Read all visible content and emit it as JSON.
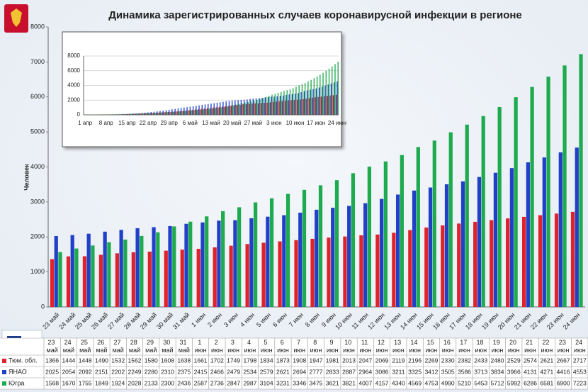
{
  "chart_data": [
    {
      "type": "bar",
      "title": "Динамика зарегистрированных случаев коронавирусной инфекции в регионе",
      "y_label": "Человек",
      "categories": [
        "23 май",
        "24 май",
        "25 май",
        "26 май",
        "27 май",
        "28 май",
        "29 май",
        "30 май",
        "31 май",
        "1 июн",
        "2 июн",
        "3 июн",
        "4 июн",
        "5 июн",
        "6 июн",
        "7 июн",
        "8 июн",
        "9 июн",
        "10 июн",
        "11 июн",
        "12 июн",
        "13 июн",
        "14 июн",
        "15 июн",
        "16 июн",
        "17 июн",
        "18 июн",
        "19 июн",
        "20 июн",
        "21 июн",
        "22 июн",
        "23 июн",
        "24 июн"
      ],
      "series": [
        {
          "name": "Тюм. обл.",
          "color": "#e0232b",
          "values": [
            1366,
            1444,
            1448,
            1490,
            1532,
            1562,
            1580,
            1608,
            1638,
            1661,
            1702,
            1749,
            1798,
            1834,
            1873,
            1908,
            1947,
            1981,
            2013,
            2047,
            2069,
            2119,
            2196,
            2269,
            2330,
            2382,
            2433,
            2480,
            2529,
            2574,
            2621,
            2667,
            2717
          ]
        },
        {
          "name": "ЯНАО",
          "color": "#2140c8",
          "values": [
            2025,
            2054,
            2092,
            2151,
            2202,
            2249,
            2280,
            2310,
            2375,
            2415,
            2466,
            2479,
            2534,
            2579,
            2621,
            2694,
            2777,
            2833,
            2887,
            2964,
            3086,
            3211,
            3325,
            3412,
            3505,
            3586,
            3713,
            3834,
            3966,
            4131,
            4271,
            4416,
            4553
          ]
        },
        {
          "name": "Югра",
          "color": "#1eaa4e",
          "values": [
            1568,
            1670,
            1755,
            1849,
            1924,
            2028,
            2133,
            2300,
            2436,
            2587,
            2736,
            2847,
            2987,
            3104,
            3231,
            3346,
            3475,
            3621,
            3821,
            4007,
            4157,
            4340,
            4569,
            4753,
            4990,
            5210,
            5453,
            5712,
            5992,
            6286,
            6581,
            6900,
            7223
          ]
        }
      ],
      "ylim": [
        0,
        8000
      ],
      "yticks": [
        0,
        1000,
        2000,
        3000,
        4000,
        5000,
        6000,
        7000,
        8000
      ],
      "grid": false
    },
    {
      "type": "bar",
      "categories": [
        "1 апр",
        null,
        null,
        null,
        null,
        null,
        null,
        "8 апр",
        null,
        null,
        null,
        null,
        null,
        null,
        "15 апр",
        null,
        null,
        null,
        null,
        null,
        null,
        "22 апр",
        null,
        null,
        null,
        null,
        null,
        null,
        "29 апр",
        null,
        null,
        null,
        null,
        null,
        null,
        "6 май",
        null,
        null,
        null,
        null,
        null,
        null,
        "13 май",
        null,
        null,
        null,
        null,
        null,
        null,
        "20 май",
        null,
        null,
        null,
        null,
        null,
        null,
        "27 май",
        null,
        null,
        null,
        null,
        null,
        null,
        "3 июн",
        null,
        null,
        null,
        null,
        null,
        null,
        "10 июн",
        null,
        null,
        null,
        null,
        null,
        null,
        "17 июн",
        null,
        null,
        null,
        null,
        null,
        null,
        "24 июн"
      ],
      "series": [
        {
          "color": "#e0232b",
          "values": [
            10,
            12,
            15,
            18,
            22,
            27,
            32,
            38,
            45,
            52,
            60,
            70,
            80,
            92,
            105,
            120,
            135,
            150,
            168,
            186,
            205,
            225,
            245,
            268,
            290,
            315,
            340,
            365,
            392,
            420,
            450,
            485,
            520,
            560,
            600,
            640,
            680,
            725,
            770,
            815,
            860,
            905,
            950,
            995,
            1040,
            1085,
            1130,
            1175,
            1220,
            1265,
            1300,
            1335,
            1366,
            1444,
            1448,
            1490,
            1532,
            1562,
            1580,
            1608,
            1638,
            1661,
            1702,
            1749,
            1798,
            1834,
            1873,
            1908,
            1947,
            1981,
            2013,
            2047,
            2069,
            2119,
            2196,
            2269,
            2330,
            2382,
            2433,
            2480,
            2529,
            2574,
            2621,
            2667,
            2717
          ]
        },
        {
          "color": "#2140c8",
          "values": [
            0,
            0,
            0,
            2,
            3,
            5,
            8,
            12,
            18,
            25,
            35,
            48,
            62,
            80,
            100,
            125,
            150,
            180,
            215,
            250,
            290,
            330,
            375,
            420,
            470,
            520,
            575,
            630,
            690,
            750,
            810,
            870,
            930,
            990,
            1050,
            1110,
            1170,
            1230,
            1290,
            1350,
            1410,
            1470,
            1530,
            1590,
            1650,
            1710,
            1770,
            1830,
            1880,
            1930,
            1960,
            1995,
            2025,
            2054,
            2092,
            2151,
            2202,
            2249,
            2280,
            2310,
            2375,
            2415,
            2466,
            2479,
            2534,
            2579,
            2621,
            2694,
            2777,
            2833,
            2887,
            2964,
            3086,
            3211,
            3325,
            3412,
            3505,
            3586,
            3713,
            3834,
            3966,
            4131,
            4271,
            4416,
            4553
          ]
        },
        {
          "color": "#1eaa4e",
          "values": [
            40,
            45,
            50,
            55,
            60,
            66,
            72,
            80,
            88,
            96,
            105,
            115,
            125,
            136,
            148,
            160,
            172,
            185,
            200,
            215,
            230,
            246,
            262,
            280,
            298,
            318,
            338,
            360,
            382,
            405,
            430,
            460,
            490,
            520,
            555,
            590,
            625,
            660,
            700,
            740,
            780,
            820,
            860,
            905,
            950,
            1000,
            1050,
            1100,
            1200,
            1300,
            1400,
            1480,
            1568,
            1670,
            1755,
            1849,
            1924,
            2028,
            2133,
            2300,
            2436,
            2587,
            2736,
            2847,
            2987,
            3104,
            3231,
            3346,
            3475,
            3621,
            3821,
            4007,
            4157,
            4340,
            4569,
            4753,
            4990,
            5210,
            5453,
            5712,
            5992,
            6286,
            6581,
            6900,
            7223
          ]
        }
      ],
      "ylim": [
        0,
        8000
      ],
      "yticks": [
        0,
        2000,
        4000,
        6000,
        8000
      ],
      "grid": true
    }
  ]
}
